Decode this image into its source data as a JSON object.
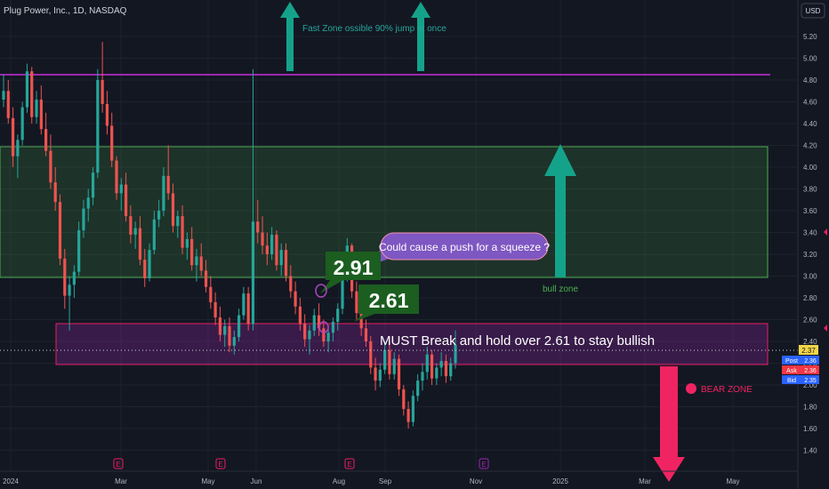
{
  "header": {
    "title": "Plug Power, Inc., 1D, NASDAQ",
    "currency": "USD"
  },
  "chart_data": {
    "type": "candlestick",
    "y_ticks": [
      "5.20",
      "5.00",
      "4.80",
      "4.60",
      "4.40",
      "4.20",
      "4.00",
      "3.80",
      "3.60",
      "3.40",
      "3.20",
      "3.00",
      "2.80",
      "2.60",
      "2.40",
      "2.20",
      "2.00",
      "1.80",
      "1.60",
      "1.40"
    ],
    "ylim": [
      1.3,
      5.3
    ],
    "x_ticks": [
      "2024",
      "Mar",
      "May",
      "Jun",
      "Aug",
      "Sep",
      "Nov",
      "2025",
      "Mar",
      "May"
    ],
    "price_badges": {
      "last": {
        "label": "",
        "value": "2.37",
        "color": "#f5d547"
      },
      "post": {
        "label": "Post",
        "value": "2.36",
        "color": "#2962ff"
      },
      "ask": {
        "label": "Ask",
        "value": "2.36",
        "color": "#f23645"
      },
      "bid": {
        "label": "Bid",
        "value": "2.35",
        "color": "#2962ff"
      }
    },
    "levels": [
      {
        "name": "resistance-line",
        "price": 4.9,
        "color": "#9c27b0"
      },
      {
        "name": "last-price-line",
        "price": 2.37,
        "color": "#d1d4dc"
      }
    ],
    "zones": [
      {
        "name": "bull-zone",
        "top": 4.22,
        "bottom": 3.03,
        "color": "#4caf50",
        "label": "bull zone"
      },
      {
        "name": "break-zone",
        "top": 2.62,
        "bottom": 2.28,
        "color": "#e91e63",
        "label": "MUST Break and hold over 2.61 to stay bullish"
      }
    ],
    "callouts": [
      {
        "text": "2.91",
        "price": 2.91
      },
      {
        "text": "2.61",
        "price": 2.61
      },
      {
        "text": "Could cause a push for a squeeze ?"
      },
      {
        "text": "Fast Zone ossible 90% jump at once"
      },
      {
        "text": "BEAR ZONE"
      }
    ],
    "earnings_markers": [
      {
        "label": "E",
        "color": "#e91e63"
      },
      {
        "label": "E",
        "color": "#e91e63"
      },
      {
        "label": "E",
        "color": "#e91e63"
      },
      {
        "label": "E",
        "color": "#9c27b0"
      }
    ],
    "candles": [
      [
        4.62,
        4.85,
        4.55,
        4.7
      ],
      [
        4.7,
        4.8,
        4.4,
        4.45
      ],
      [
        4.45,
        4.55,
        4.0,
        4.1
      ],
      [
        4.1,
        4.3,
        3.9,
        4.25
      ],
      [
        4.25,
        4.6,
        4.2,
        4.55
      ],
      [
        4.55,
        4.95,
        4.5,
        4.88
      ],
      [
        4.88,
        4.92,
        4.4,
        4.46
      ],
      [
        4.46,
        4.7,
        4.4,
        4.62
      ],
      [
        4.62,
        4.75,
        4.3,
        4.35
      ],
      [
        4.35,
        4.5,
        4.1,
        4.15
      ],
      [
        4.15,
        4.3,
        3.8,
        3.86
      ],
      [
        3.86,
        4.0,
        3.6,
        3.68
      ],
      [
        3.68,
        3.75,
        3.1,
        3.16
      ],
      [
        3.16,
        3.25,
        2.7,
        2.82
      ],
      [
        2.82,
        3.0,
        2.5,
        2.92
      ],
      [
        2.92,
        3.1,
        2.8,
        3.04
      ],
      [
        3.04,
        3.5,
        3.0,
        3.42
      ],
      [
        3.42,
        3.7,
        3.35,
        3.62
      ],
      [
        3.62,
        3.8,
        3.5,
        3.72
      ],
      [
        3.72,
        4.0,
        3.65,
        3.95
      ],
      [
        3.95,
        4.9,
        3.9,
        4.8
      ],
      [
        4.8,
        5.15,
        4.5,
        4.58
      ],
      [
        4.58,
        4.7,
        4.3,
        4.38
      ],
      [
        4.38,
        4.5,
        4.0,
        4.06
      ],
      [
        4.06,
        4.1,
        3.7,
        3.76
      ],
      [
        3.76,
        3.9,
        3.6,
        3.84
      ],
      [
        3.84,
        3.95,
        3.5,
        3.55
      ],
      [
        3.55,
        3.65,
        3.3,
        3.38
      ],
      [
        3.38,
        3.5,
        3.25,
        3.44
      ],
      [
        3.44,
        3.55,
        3.1,
        3.15
      ],
      [
        3.15,
        3.25,
        2.9,
        2.98
      ],
      [
        2.98,
        3.3,
        2.95,
        3.24
      ],
      [
        3.24,
        3.6,
        3.2,
        3.52
      ],
      [
        3.52,
        3.7,
        3.45,
        3.6
      ],
      [
        3.6,
        4.0,
        3.55,
        3.92
      ],
      [
        3.92,
        4.2,
        3.7,
        3.76
      ],
      [
        3.76,
        3.85,
        3.4,
        3.46
      ],
      [
        3.46,
        3.6,
        3.35,
        3.55
      ],
      [
        3.55,
        3.65,
        3.2,
        3.26
      ],
      [
        3.26,
        3.4,
        3.15,
        3.34
      ],
      [
        3.34,
        3.45,
        3.05,
        3.1
      ],
      [
        3.1,
        3.25,
        2.95,
        3.18
      ],
      [
        3.18,
        3.3,
        3.0,
        3.05
      ],
      [
        3.05,
        3.15,
        2.85,
        2.9
      ],
      [
        2.9,
        3.0,
        2.7,
        2.76
      ],
      [
        2.76,
        2.85,
        2.55,
        2.62
      ],
      [
        2.62,
        2.72,
        2.4,
        2.46
      ],
      [
        2.46,
        2.6,
        2.35,
        2.54
      ],
      [
        2.54,
        2.62,
        2.3,
        2.36
      ],
      [
        2.36,
        2.5,
        2.28,
        2.44
      ],
      [
        2.44,
        2.7,
        2.4,
        2.64
      ],
      [
        2.64,
        2.9,
        2.6,
        2.84
      ],
      [
        2.84,
        2.9,
        2.5,
        2.56
      ],
      [
        2.56,
        4.9,
        2.5,
        3.5
      ],
      [
        3.5,
        3.7,
        3.3,
        3.4
      ],
      [
        3.4,
        3.55,
        3.2,
        3.28
      ],
      [
        3.28,
        3.4,
        3.1,
        3.2
      ],
      [
        3.2,
        3.45,
        3.15,
        3.38
      ],
      [
        3.38,
        3.42,
        3.05,
        3.1
      ],
      [
        3.1,
        3.3,
        3.0,
        3.24
      ],
      [
        3.24,
        3.3,
        2.95,
        3.0
      ],
      [
        3.0,
        3.1,
        2.8,
        2.86
      ],
      [
        2.86,
        2.95,
        2.65,
        2.72
      ],
      [
        2.72,
        2.8,
        2.5,
        2.56
      ],
      [
        2.56,
        2.65,
        2.35,
        2.42
      ],
      [
        2.42,
        2.55,
        2.28,
        2.5
      ],
      [
        2.5,
        2.7,
        2.45,
        2.64
      ],
      [
        2.64,
        2.75,
        2.45,
        2.52
      ],
      [
        2.52,
        2.6,
        2.35,
        2.4
      ],
      [
        2.4,
        2.55,
        2.3,
        2.48
      ],
      [
        2.48,
        2.62,
        2.4,
        2.58
      ],
      [
        2.58,
        2.75,
        2.5,
        2.7
      ],
      [
        2.7,
        3.1,
        2.65,
        3.02
      ],
      [
        3.02,
        3.35,
        2.95,
        3.28
      ],
      [
        3.28,
        3.3,
        2.8,
        2.86
      ],
      [
        2.86,
        2.95,
        2.6,
        2.66
      ],
      [
        2.66,
        2.75,
        2.45,
        2.52
      ],
      [
        2.52,
        2.6,
        2.35,
        2.4
      ],
      [
        2.4,
        2.45,
        2.1,
        2.16
      ],
      [
        2.16,
        2.25,
        1.95,
        2.04
      ],
      [
        2.04,
        2.2,
        1.98,
        2.14
      ],
      [
        2.14,
        2.4,
        2.1,
        2.32
      ],
      [
        2.32,
        2.4,
        2.05,
        2.1
      ],
      [
        2.1,
        2.3,
        2.05,
        2.24
      ],
      [
        2.24,
        2.28,
        1.9,
        1.96
      ],
      [
        1.96,
        2.0,
        1.72,
        1.78
      ],
      [
        1.78,
        1.85,
        1.6,
        1.66
      ],
      [
        1.66,
        1.95,
        1.62,
        1.9
      ],
      [
        1.9,
        2.1,
        1.85,
        2.04
      ],
      [
        2.04,
        2.2,
        1.95,
        2.12
      ],
      [
        2.12,
        2.35,
        2.05,
        2.28
      ],
      [
        2.28,
        2.32,
        2.0,
        2.06
      ],
      [
        2.06,
        2.2,
        2.0,
        2.16
      ],
      [
        2.16,
        2.3,
        2.08,
        2.22
      ],
      [
        2.22,
        2.28,
        2.02,
        2.08
      ],
      [
        2.08,
        2.25,
        2.04,
        2.2
      ],
      [
        2.2,
        2.5,
        2.15,
        2.37
      ]
    ]
  }
}
